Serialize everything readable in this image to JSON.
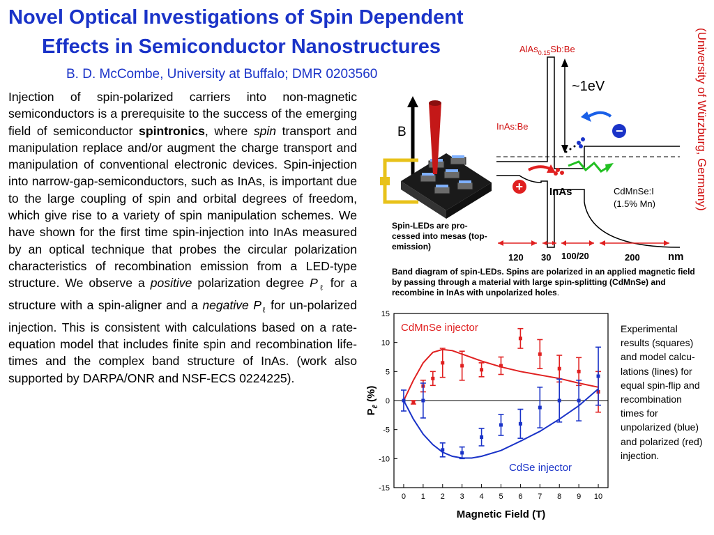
{
  "title": {
    "line1": "Novel Optical Investigations of Spin Dependent",
    "line2": "Effects in Semiconductor Nanostructures"
  },
  "author": "B. D. McCombe, University at Buffalo; DMR 0203560",
  "affiliation_vertical": "(University of  Würzburg, Germany)",
  "body": {
    "p1": "Injection of spin-polarized carriers into non-magnetic semiconductors is a prerequisite to the success of the emerging field of semiconductor ",
    "spintronics": "spintronics",
    "p2": ", where ",
    "spin": "spin",
    "p3": " transport and manipulation replace and/or augment the charge transport and manipulation of conventional electronic devices. Spin-injection into narrow-gap-semiconductors, such as InAs, is important due to the large coupling of spin and orbital degrees of freedom, which give rise to a variety of spin manipulation schemes. We have shown for the first time spin-injection into InAs measured by an optical technique that probes the circular polarization characteristics of recombination emission from a LED-type structure. We observe a ",
    "positive": "positive",
    "p4": " polarization degree ",
    "p_symbol": "P",
    "p_sub": "ℓ",
    "p5": " for a structure with a spin-aligner and a ",
    "negative": "negative",
    "p6": " ",
    "p7": " for un-polarized injection. This is consistent with calculations based on a rate-equation model that includes finite spin and recombination life-times and the complex band structure of InAs. (work also supported by DARPA/ONR and NSF-ECS 0224225)."
  },
  "device": {
    "b_label": "B",
    "caption": "Spin-LEDs are pro-cessed into mesas (top-emission)"
  },
  "band": {
    "alas_label_a": "AlAs",
    "alas_sub": "0.15",
    "alas_label_b": "Sb:Be",
    "gap": "~1eV",
    "inas_be": "InAs:Be",
    "inas": "InAs",
    "cdmnse_1": "CdMnSe:I",
    "cdmnse_2": "(1.5% Mn)",
    "plus": "+",
    "minus": "−",
    "dims": [
      "120",
      "30",
      "100/20",
      "200"
    ],
    "unit": "nm",
    "caption": "Band diagram of spin-LEDs. Spins are polarized in an applied magnetic field by passing through a material with large spin-splitting (CdMnSe) and recombine in InAs with unpolarized holes",
    "caption_end": "."
  },
  "chart_data": {
    "type": "scatter",
    "xlabel": "Magnetic Field (T)",
    "ylabel_main": "P",
    "ylabel_sub": "ℓ",
    "ylabel_unit": " (%)",
    "xlim": [
      -0.5,
      10.5
    ],
    "ylim": [
      -15,
      15
    ],
    "xticks": [
      0,
      1,
      2,
      3,
      4,
      5,
      6,
      7,
      8,
      9,
      10
    ],
    "yticks": [
      15,
      10,
      5,
      0,
      -5,
      -10,
      -15
    ],
    "series": [
      {
        "name": "CdMnSe injector",
        "color": "#e02020",
        "points": [
          {
            "x": 0.5,
            "y": -0.3,
            "err": 0.3
          },
          {
            "x": 1,
            "y": 2.5,
            "err": 1.0
          },
          {
            "x": 1.5,
            "y": 3.8,
            "err": 1.2
          },
          {
            "x": 2,
            "y": 6.5,
            "err": 2.5
          },
          {
            "x": 3,
            "y": 6.0,
            "err": 2.5
          },
          {
            "x": 4,
            "y": 5.3,
            "err": 1.2
          },
          {
            "x": 5,
            "y": 6.0,
            "err": 1.5
          },
          {
            "x": 6,
            "y": 10.7,
            "err": 1.7
          },
          {
            "x": 7,
            "y": 8.0,
            "err": 2.5
          },
          {
            "x": 8,
            "y": 5.5,
            "err": 2.3
          },
          {
            "x": 9,
            "y": 5.0,
            "err": 2.4
          },
          {
            "x": 10,
            "y": 1.5,
            "err": 3.5
          }
        ],
        "model": [
          [
            0,
            0
          ],
          [
            0.5,
            3.5
          ],
          [
            1,
            6.5
          ],
          [
            1.5,
            8.3
          ],
          [
            2,
            8.8
          ],
          [
            2.5,
            8.6
          ],
          [
            3,
            8.0
          ],
          [
            4,
            6.8
          ],
          [
            5,
            5.8
          ],
          [
            6,
            5.0
          ],
          [
            7,
            4.4
          ],
          [
            8,
            3.8
          ],
          [
            9,
            3.0
          ],
          [
            10,
            2.3
          ]
        ]
      },
      {
        "name": "CdSe injector",
        "color": "#1a33c8",
        "points": [
          {
            "x": 0,
            "y": 0,
            "err": 1.8
          },
          {
            "x": 1,
            "y": 0,
            "err": 3.0
          },
          {
            "x": 2,
            "y": -8.5,
            "err": 1.2
          },
          {
            "x": 3,
            "y": -9.0,
            "err": 1.0
          },
          {
            "x": 4,
            "y": -6.3,
            "err": 1.5
          },
          {
            "x": 5,
            "y": -4.2,
            "err": 1.8
          },
          {
            "x": 6,
            "y": -4.0,
            "err": 2.5
          },
          {
            "x": 7,
            "y": -1.2,
            "err": 3.5
          },
          {
            "x": 8,
            "y": 0,
            "err": 3.7
          },
          {
            "x": 9,
            "y": 0,
            "err": 3.5
          },
          {
            "x": 10,
            "y": 4.2,
            "err": 5.0
          }
        ],
        "model": [
          [
            0,
            0
          ],
          [
            0.5,
            -3.2
          ],
          [
            1,
            -5.8
          ],
          [
            1.5,
            -7.6
          ],
          [
            2,
            -8.9
          ],
          [
            2.5,
            -9.6
          ],
          [
            3,
            -9.9
          ],
          [
            3.5,
            -9.9
          ],
          [
            4,
            -9.6
          ],
          [
            5,
            -8.6
          ],
          [
            6,
            -7.0
          ],
          [
            7,
            -5.3
          ],
          [
            8,
            -3.2
          ],
          [
            9,
            -0.9
          ],
          [
            10,
            2.0
          ]
        ]
      }
    ]
  },
  "right_caption": "Experimental results (squares) and model calcu-lations (lines) for equal spin-flip and recombination times for unpolarized (blue) and polarized (red) injection."
}
